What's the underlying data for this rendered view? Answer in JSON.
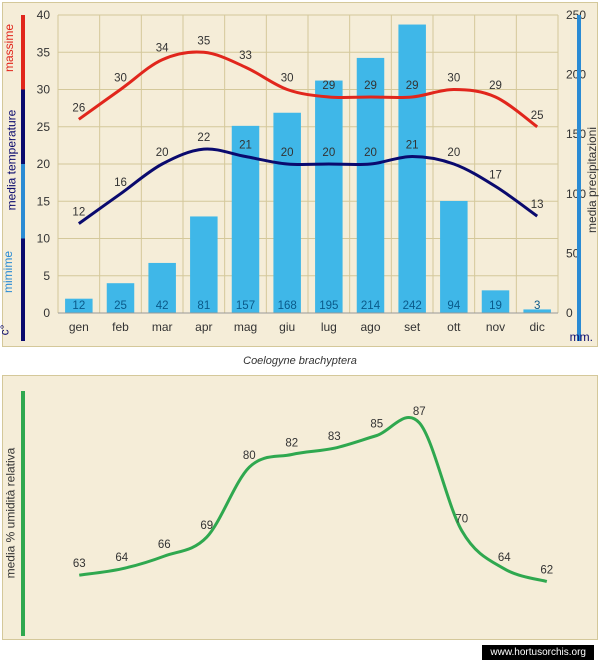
{
  "title": "Coelogyne brachyptera",
  "source": "www.hortusorchis.org",
  "months": [
    "gen",
    "feb",
    "mar",
    "apr",
    "mag",
    "giu",
    "lug",
    "ago",
    "set",
    "ott",
    "nov",
    "dic"
  ],
  "temperature_chart": {
    "type": "combo",
    "left_axis": {
      "label_c": "c°",
      "label_mid": "media  temperature",
      "label_min": "mimime",
      "label_max": "massime",
      "min": 0,
      "max": 40,
      "step": 5,
      "color_c": "#0a0a6e",
      "color_mid": "#0a0a6e",
      "color_min": "#2a8bd4",
      "color_max": "#e1261c"
    },
    "right_axis": {
      "label": "media  precipitazioni",
      "unit": "mm.",
      "min": 0,
      "max": 250,
      "step": 50,
      "color": "#2a8bd4"
    },
    "grid_color": "#d4c89a",
    "bars": {
      "color": "#3fb7e8",
      "values": [
        12,
        25,
        42,
        81,
        157,
        168,
        195,
        214,
        242,
        94,
        19,
        3
      ],
      "label_color": "#0a5a8a"
    },
    "line_max": {
      "color": "#e1261c",
      "width": 3,
      "values": [
        26,
        30,
        34,
        35,
        33,
        30,
        29,
        29,
        29,
        30,
        29,
        25
      ],
      "label_color": "#333"
    },
    "line_min": {
      "color": "#0a0a6e",
      "width": 3,
      "values": [
        12,
        16,
        20,
        22,
        21,
        20,
        20,
        20,
        21,
        20,
        17,
        13
      ],
      "label_color": "#333"
    },
    "background_color": "#f5edd8"
  },
  "humidity_chart": {
    "type": "line",
    "left_axis": {
      "label": "media % umidità relativa",
      "color": "#2fa84f"
    },
    "values": [
      63,
      64,
      66,
      69,
      80,
      82,
      83,
      85,
      87,
      70,
      64,
      62
    ],
    "line_color": "#2fa84f",
    "line_width": 3,
    "label_color": "#333",
    "background_color": "#f5edd8",
    "ymin": 55,
    "ymax": 92
  }
}
